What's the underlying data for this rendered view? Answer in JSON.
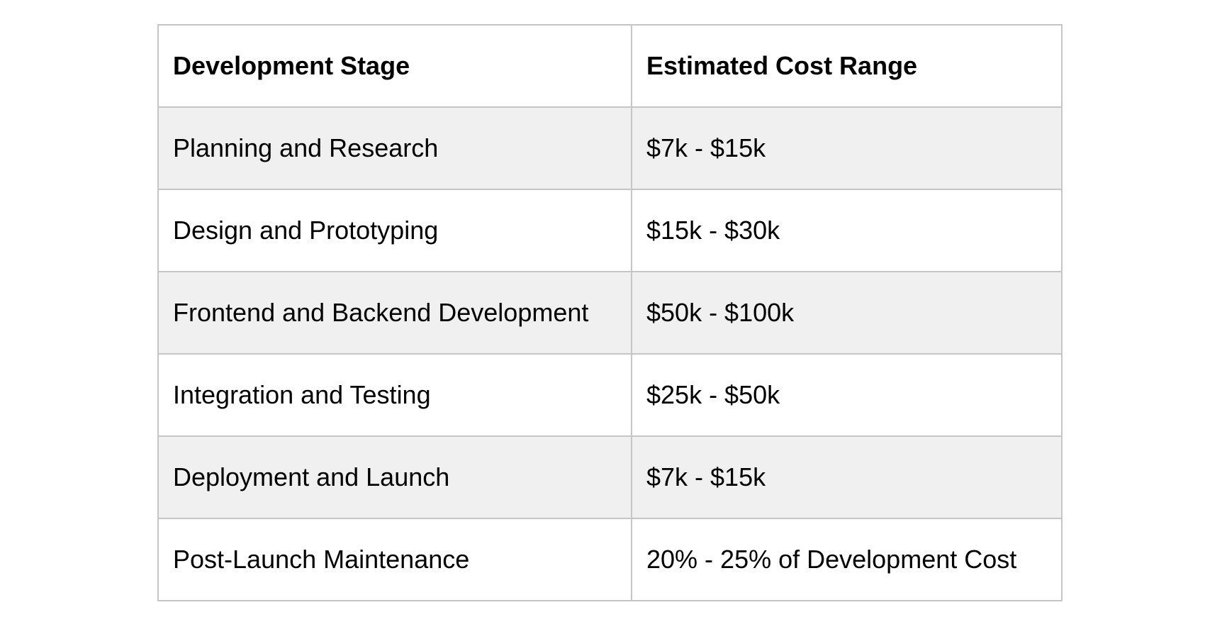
{
  "table": {
    "columns": {
      "stage": "Development Stage",
      "cost": "Estimated Cost Range"
    },
    "rows": [
      {
        "stage": "Planning and Research",
        "cost": "$7k - $15k"
      },
      {
        "stage": "Design and Prototyping",
        "cost": "$15k - $30k"
      },
      {
        "stage": "Frontend and Backend Development",
        "cost": "$50k - $100k"
      },
      {
        "stage": "Integration and Testing",
        "cost": "$25k - $50k"
      },
      {
        "stage": "Deployment and Launch",
        "cost": "$7k - $15k"
      },
      {
        "stage": "Post-Launch Maintenance",
        "cost": "20% - 25% of Development Cost"
      }
    ],
    "colors": {
      "border": "#c6c6c6",
      "shaded_row_background": "#f0f0f1",
      "text": "#000000",
      "page_background": "#ffffff"
    }
  }
}
